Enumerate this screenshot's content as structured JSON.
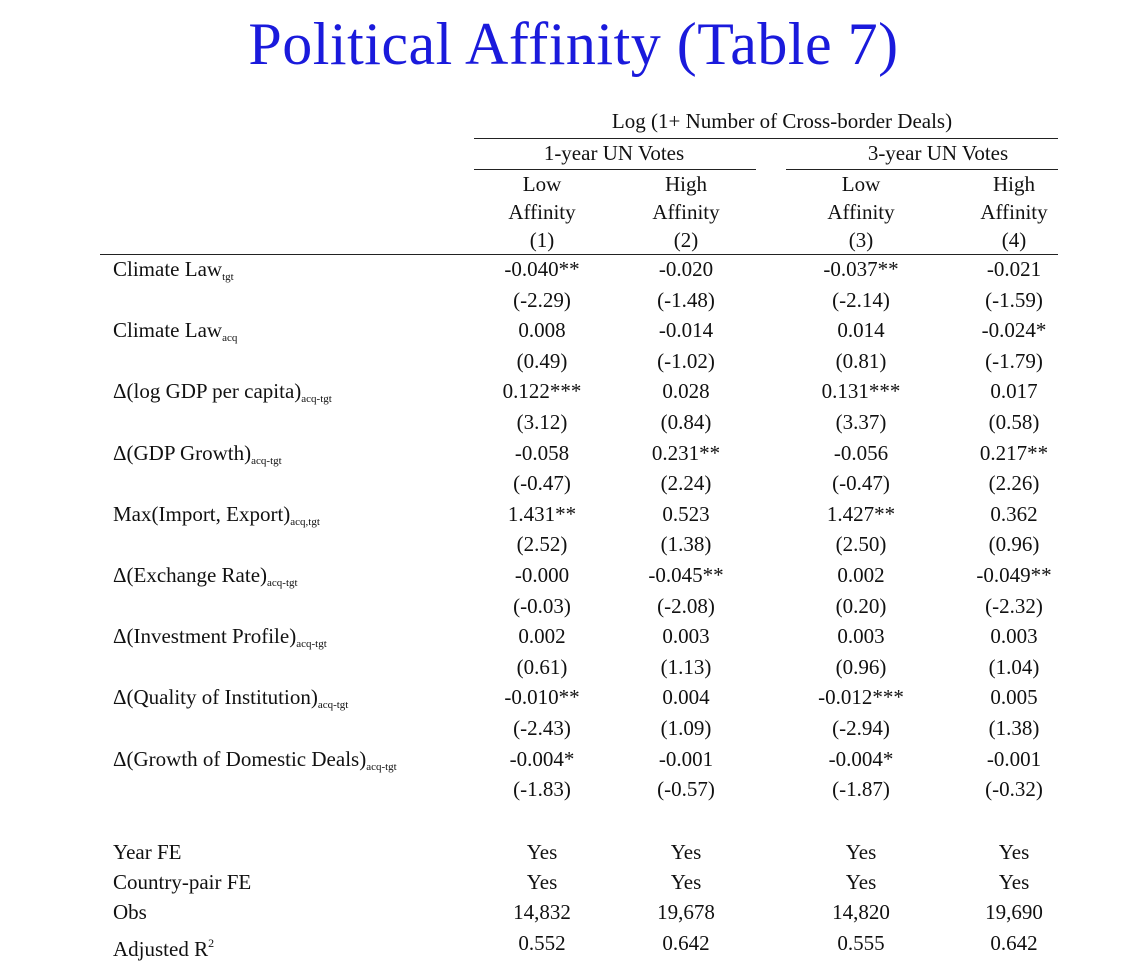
{
  "title": "Political Affinity (Table 7)",
  "table": {
    "dep_var": "Log (1+ Number of Cross-border Deals)",
    "groups": [
      "1-year UN Votes",
      "3-year UN Votes"
    ],
    "columns": [
      {
        "line1": "Low",
        "line2": "Affinity",
        "num": "(1)"
      },
      {
        "line1": "High",
        "line2": "Affinity",
        "num": "(2)"
      },
      {
        "line1": "Low",
        "line2": "Affinity",
        "num": "(3)"
      },
      {
        "line1": "High",
        "line2": "Affinity",
        "num": "(4)"
      }
    ],
    "rows": [
      {
        "label": "Climate Law",
        "sub": "tgt",
        "coef": [
          "-0.040**",
          "-0.020",
          "-0.037**",
          "-0.021"
        ],
        "t": [
          "(-2.29)",
          "(-1.48)",
          "(-2.14)",
          "(-1.59)"
        ]
      },
      {
        "label": "Climate Law",
        "sub": "acq",
        "coef": [
          "0.008",
          "-0.014",
          "0.014",
          "-0.024*"
        ],
        "t": [
          "(0.49)",
          "(-1.02)",
          "(0.81)",
          "(-1.79)"
        ]
      },
      {
        "label": "Δ(log GDP per capita)",
        "sub": "acq-tgt",
        "coef": [
          "0.122***",
          "0.028",
          "0.131***",
          "0.017"
        ],
        "t": [
          "(3.12)",
          "(0.84)",
          "(3.37)",
          "(0.58)"
        ]
      },
      {
        "label": "Δ(GDP Growth)",
        "sub": "acq-tgt",
        "coef": [
          "-0.058",
          "0.231**",
          "-0.056",
          "0.217**"
        ],
        "t": [
          "(-0.47)",
          "(2.24)",
          "(-0.47)",
          "(2.26)"
        ]
      },
      {
        "label": "Max(Import, Export)",
        "sub": "acq,tgt",
        "coef": [
          "1.431**",
          "0.523",
          "1.427**",
          "0.362"
        ],
        "t": [
          "(2.52)",
          "(1.38)",
          "(2.50)",
          "(0.96)"
        ]
      },
      {
        "label": "Δ(Exchange Rate)",
        "sub": "acq-tgt",
        "coef": [
          "-0.000",
          "-0.045**",
          "0.002",
          "-0.049**"
        ],
        "t": [
          "(-0.03)",
          "(-2.08)",
          "(0.20)",
          "(-2.32)"
        ]
      },
      {
        "label": "Δ(Investment Profile)",
        "sub": "acq-tgt",
        "coef": [
          "0.002",
          "0.003",
          "0.003",
          "0.003"
        ],
        "t": [
          "(0.61)",
          "(1.13)",
          "(0.96)",
          "(1.04)"
        ]
      },
      {
        "label": "Δ(Quality of Institution)",
        "sub": "acq-tgt",
        "coef": [
          "-0.010**",
          "0.004",
          "-0.012***",
          "0.005"
        ],
        "t": [
          "(-2.43)",
          "(1.09)",
          "(-2.94)",
          "(1.38)"
        ]
      },
      {
        "label": "Δ(Growth of Domestic Deals)",
        "sub": "acq-tgt",
        "coef": [
          "-0.004*",
          "-0.001",
          "-0.004*",
          "-0.001"
        ],
        "t": [
          "(-1.83)",
          "(-0.57)",
          "(-1.87)",
          "(-0.32)"
        ]
      }
    ],
    "footer": [
      {
        "label": "Year FE",
        "values": [
          "Yes",
          "Yes",
          "Yes",
          "Yes"
        ]
      },
      {
        "label": "Country-pair FE",
        "values": [
          "Yes",
          "Yes",
          "Yes",
          "Yes"
        ]
      },
      {
        "label": "Obs",
        "values": [
          "14,832",
          "19,678",
          "14,820",
          "19,690"
        ]
      },
      {
        "label": "Adjusted R",
        "sup": "2",
        "values": [
          "0.552",
          "0.642",
          "0.555",
          "0.642"
        ]
      }
    ]
  }
}
